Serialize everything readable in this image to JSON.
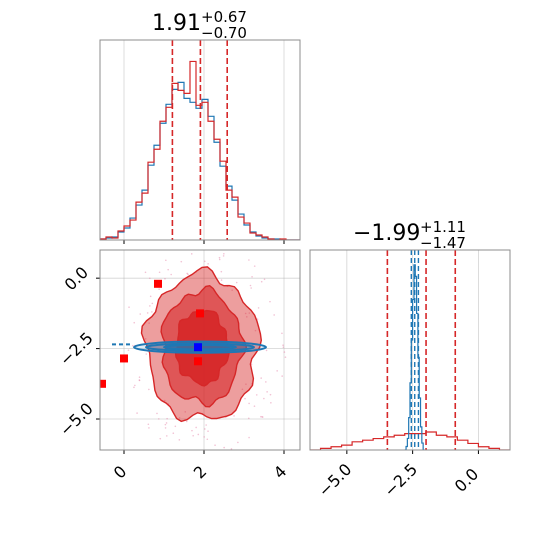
{
  "chart_data": [
    {
      "type": "histogram",
      "panel": "top-left",
      "parameter_summary": {
        "median": "1.91",
        "upper": "+0.67",
        "lower": "−0.70"
      },
      "quantiles": [
        1.21,
        1.91,
        2.58
      ],
      "xlim": [
        -0.6,
        4.4
      ],
      "bins": [
        -0.6,
        -0.45,
        -0.3,
        -0.15,
        0.0,
        0.15,
        0.3,
        0.45,
        0.6,
        0.75,
        0.9,
        1.05,
        1.2,
        1.35,
        1.5,
        1.65,
        1.8,
        1.95,
        2.1,
        2.25,
        2.4,
        2.55,
        2.7,
        2.85,
        3.0,
        3.15,
        3.3,
        3.45,
        3.6,
        3.75,
        3.9,
        4.05,
        4.2,
        4.4
      ],
      "series": [
        {
          "color": "#1f77b4",
          "values": [
            1,
            2,
            3,
            8,
            12,
            22,
            35,
            50,
            75,
            95,
            117,
            136,
            151,
            158,
            142,
            138,
            132,
            141,
            124,
            98,
            74,
            54,
            40,
            26,
            15,
            8,
            4,
            2,
            1,
            1,
            0,
            0,
            0
          ]
        },
        {
          "color": "#d62728",
          "values": [
            1,
            3,
            2,
            9,
            14,
            20,
            38,
            47,
            78,
            91,
            119,
            133,
            157,
            150,
            147,
            179,
            135,
            138,
            119,
            101,
            79,
            50,
            43,
            23,
            17,
            7,
            5,
            3,
            1,
            0,
            1,
            0,
            0
          ]
        }
      ],
      "xticks": [
        0,
        2,
        4
      ],
      "grid": true
    },
    {
      "type": "contour",
      "panel": "bottom-left",
      "xlim": [
        -0.6,
        4.4
      ],
      "ylim": [
        -6.1,
        1.0
      ],
      "xticks": [
        0,
        2,
        4
      ],
      "xtick_labels": [
        "0",
        "2",
        "4"
      ],
      "yticks": [
        0.0,
        -2.5,
        -5.0
      ],
      "ytick_labels": [
        "0.0",
        "−2.5",
        "−5.0"
      ],
      "series": [
        {
          "color": "#d62728",
          "center": [
            1.95,
            -2.45
          ],
          "levels": [
            [
              1.4,
              2.6
            ],
            [
              1.0,
              2.0
            ],
            [
              0.65,
              1.3
            ]
          ]
        },
        {
          "color": "#1f77b4",
          "center": [
            1.9,
            -2.45
          ],
          "levels": [
            [
              1.65,
              0.2
            ],
            [
              1.35,
              0.13
            ],
            [
              0.9,
              0.08
            ]
          ]
        }
      ],
      "markers": [
        {
          "color": "#ff0000",
          "x": 0.85,
          "y": -0.2
        },
        {
          "color": "#ff0000",
          "x": 1.9,
          "y": -1.25
        },
        {
          "color": "#ff0000",
          "x": 1.85,
          "y": -2.95
        },
        {
          "color": "#ff0000",
          "x": 0.0,
          "y": -2.85
        },
        {
          "color": "#ff0000",
          "x": -0.55,
          "y": -3.75
        },
        {
          "color": "#0000ff",
          "x": 1.85,
          "y": -2.45
        }
      ],
      "grid": true
    },
    {
      "type": "histogram",
      "panel": "bottom-right",
      "parameter_summary": {
        "median": "−1.99",
        "upper": "+1.11",
        "lower": "−1.47"
      },
      "xlim": [
        -6.4,
        1.2
      ],
      "xticks": [
        -5.0,
        -2.5,
        0.0
      ],
      "xtick_labels": [
        "−5.0",
        "−2.5",
        "0.0"
      ],
      "quantiles_red": [
        -3.46,
        -1.99,
        -0.88
      ],
      "quantiles_blue": [
        -2.55,
        -2.42,
        -2.28
      ],
      "series": [
        {
          "color": "#d62728",
          "x": [
            -6.4,
            -6.0,
            -5.6,
            -5.2,
            -4.8,
            -4.4,
            -4.0,
            -3.6,
            -3.2,
            -2.8,
            -2.4,
            -2.0,
            -1.6,
            -1.2,
            -0.8,
            -0.4,
            0.0,
            0.4,
            0.8,
            1.2
          ],
          "values": [
            0,
            1,
            2,
            3,
            5,
            6,
            7,
            8,
            9,
            10,
            10,
            11,
            9,
            8,
            6,
            4,
            2,
            1,
            0,
            0
          ]
        },
        {
          "color": "#1f77b4",
          "x": [
            -2.8,
            -2.75,
            -2.7,
            -2.65,
            -2.6,
            -2.55,
            -2.5,
            -2.45,
            -2.4,
            -2.35,
            -2.3,
            -2.25,
            -2.2,
            -2.15,
            -2.1
          ],
          "values": [
            0,
            3,
            10,
            28,
            58,
            95,
            130,
            160,
            150,
            118,
            80,
            45,
            20,
            6,
            0
          ]
        }
      ],
      "grid": true
    }
  ]
}
